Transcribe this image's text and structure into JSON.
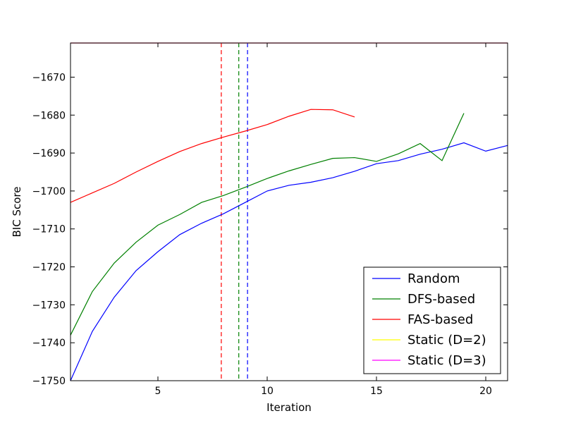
{
  "chart_data": {
    "type": "line",
    "title": "",
    "xlabel": "Iteration",
    "ylabel": "BIC Score",
    "xlim": [
      1,
      21
    ],
    "ylim": [
      -1750,
      -1661
    ],
    "xticks": [
      5,
      10,
      15,
      20
    ],
    "xtick_labels": [
      "5",
      "10",
      "15",
      "20"
    ],
    "yticks": [
      -1750,
      -1740,
      -1730,
      -1720,
      -1710,
      -1700,
      -1690,
      -1680,
      -1670
    ],
    "ytick_labels": [
      "−1750",
      "−1740",
      "−1730",
      "−1720",
      "−1710",
      "−1700",
      "−1690",
      "−1680",
      "−1670"
    ],
    "grid": false,
    "legend_position": "lower-right",
    "series": [
      {
        "name": "Random",
        "color": "#0000ff",
        "x": [
          1,
          2,
          3,
          4,
          5,
          6,
          7,
          8,
          9,
          10,
          11,
          12,
          13,
          14,
          15,
          16,
          17,
          18,
          19,
          20,
          21
        ],
        "values": [
          -1750,
          -1737,
          -1728,
          -1721,
          -1716,
          -1711.5,
          -1708.5,
          -1706,
          -1703,
          -1700,
          -1698.5,
          -1697.7,
          -1696.5,
          -1694.8,
          -1692.8,
          -1692,
          -1690.3,
          -1689,
          -1687.3,
          -1689.5,
          -1688
        ]
      },
      {
        "name": "DFS-based",
        "color": "#008000",
        "x": [
          1,
          2,
          3,
          4,
          5,
          6,
          7,
          8,
          9,
          10,
          11,
          12,
          13,
          14,
          15,
          16,
          17,
          18,
          19
        ],
        "values": [
          -1738,
          -1726.5,
          -1719,
          -1713.5,
          -1709,
          -1706.2,
          -1703,
          -1701.2,
          -1699,
          -1696.7,
          -1694.7,
          -1693,
          -1691.4,
          -1691.2,
          -1692.2,
          -1690.2,
          -1687.5,
          -1692,
          -1679.5
        ]
      },
      {
        "name": "FAS-based",
        "color": "#ff0000",
        "x": [
          1,
          2,
          3,
          4,
          5,
          6,
          7,
          8,
          9,
          10,
          11,
          12,
          13,
          14
        ],
        "values": [
          -1703,
          -1700.5,
          -1698,
          -1695,
          -1692.2,
          -1689.6,
          -1687.5,
          -1685.8,
          -1684.2,
          -1682.5,
          -1680.3,
          -1678.5,
          -1678.6,
          -1680.5
        ]
      },
      {
        "name": "Static (D=2)",
        "color": "#ffff00",
        "x": [
          1,
          21
        ],
        "values": [
          -1661,
          -1661
        ]
      },
      {
        "name": "Static (D=3)",
        "color": "#ff00ff",
        "x": [
          1,
          21
        ],
        "values": [
          -1661,
          -1661
        ]
      }
    ],
    "vertical_lines": [
      {
        "x": 7.9,
        "color": "#ff0000",
        "style": "dashed"
      },
      {
        "x": 8.7,
        "color": "#008000",
        "style": "dashed"
      },
      {
        "x": 9.1,
        "color": "#0000ff",
        "style": "dashed"
      }
    ]
  }
}
